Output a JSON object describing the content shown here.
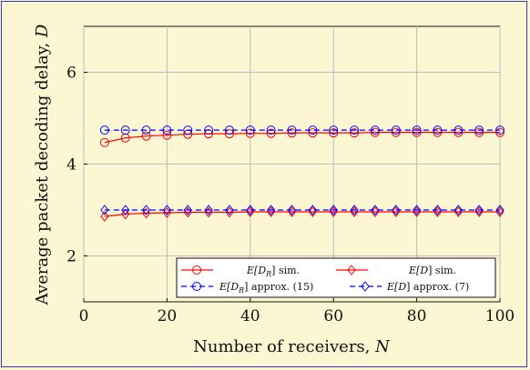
{
  "chart_data": {
    "type": "line",
    "title": "",
    "xlabel": "Number of receivers, N",
    "ylabel": "Average packet decoding delay, D",
    "xlim": [
      0,
      100
    ],
    "ylim": [
      1,
      7
    ],
    "xticks": [
      "0",
      "20",
      "40",
      "60",
      "80",
      "100"
    ],
    "yticks": [
      "2",
      "4",
      "6"
    ],
    "grid": true,
    "legend_position": "bottom-right",
    "x": [
      5,
      10,
      15,
      20,
      25,
      30,
      35,
      40,
      45,
      50,
      55,
      60,
      65,
      70,
      75,
      80,
      85,
      90,
      95,
      100
    ],
    "series": [
      {
        "name": "E[D_R] sim.",
        "color": "#ff0000",
        "style": "solid",
        "marker": "circle",
        "values": [
          4.47,
          4.57,
          4.61,
          4.63,
          4.65,
          4.66,
          4.66,
          4.67,
          4.67,
          4.68,
          4.68,
          4.68,
          4.68,
          4.69,
          4.69,
          4.69,
          4.69,
          4.69,
          4.69,
          4.69
        ]
      },
      {
        "name": "E[D] sim.",
        "color": "#ff0000",
        "style": "solid",
        "marker": "diamond",
        "values": [
          2.86,
          2.91,
          2.93,
          2.94,
          2.95,
          2.95,
          2.95,
          2.96,
          2.96,
          2.96,
          2.96,
          2.96,
          2.96,
          2.96,
          2.96,
          2.96,
          2.96,
          2.96,
          2.96,
          2.96
        ]
      },
      {
        "name": "E[D_R] approx. (15)",
        "color": "#0000ff",
        "style": "dashed",
        "marker": "circle",
        "values": [
          4.74,
          4.74,
          4.74,
          4.74,
          4.74,
          4.74,
          4.74,
          4.74,
          4.74,
          4.74,
          4.74,
          4.74,
          4.74,
          4.74,
          4.74,
          4.74,
          4.74,
          4.74,
          4.74,
          4.74
        ]
      },
      {
        "name": "E[D] approx. (7)",
        "color": "#0000ff",
        "style": "dashed",
        "marker": "diamond",
        "values": [
          3.0,
          3.0,
          3.0,
          3.0,
          3.0,
          3.0,
          3.0,
          3.0,
          3.0,
          3.0,
          3.0,
          3.0,
          3.0,
          3.0,
          3.0,
          3.0,
          3.0,
          3.0,
          3.0,
          3.0
        ]
      }
    ]
  },
  "legend": {
    "entries": [
      {
        "base": "E[D",
        "sub": "R",
        "tail": "] sim."
      },
      {
        "base": "E[D",
        "sub": "",
        "tail": "] sim."
      },
      {
        "base": "E[D",
        "sub": "R",
        "tail": "] approx. (15)"
      },
      {
        "base": "E[D",
        "sub": "",
        "tail": "] approx. (7)"
      }
    ]
  },
  "axes": {
    "xlabel_text": "Number of receivers, ",
    "xlabel_var": "N",
    "ylabel_text": "Average packet decoding delay, ",
    "ylabel_var": "D"
  }
}
